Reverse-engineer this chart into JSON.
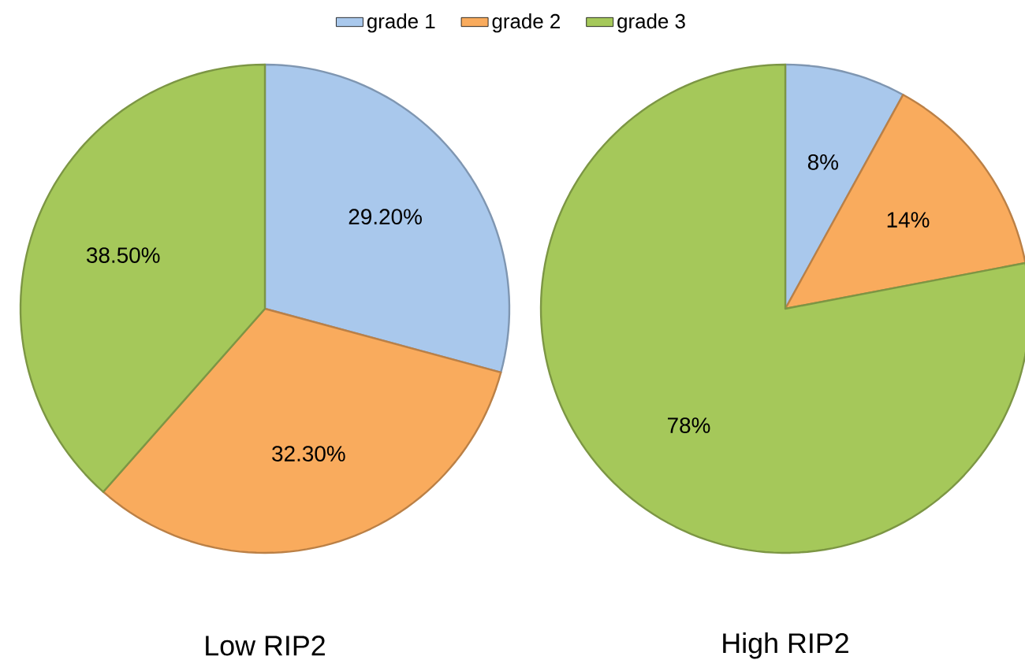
{
  "chart_data": [
    {
      "type": "pie",
      "title": "Low RIP2",
      "categories": [
        "grade 1",
        "grade 2",
        "grade 3"
      ],
      "values": [
        29.2,
        32.3,
        38.5
      ],
      "colors": [
        "#a9c8ec",
        "#f9ab5d",
        "#a5c85a"
      ],
      "value_labels": [
        "29.20%",
        "32.30%",
        "38.50%"
      ],
      "legend": "top"
    },
    {
      "type": "pie",
      "title": "High RIP2",
      "categories": [
        null,
        null,
        null
      ],
      "values": [
        8,
        14,
        78
      ],
      "colors": [
        "#a9c8ec",
        "#f9ab5d",
        "#a5c85a"
      ],
      "value_labels": [
        "8%",
        "14%",
        "78%"
      ]
    }
  ]
}
